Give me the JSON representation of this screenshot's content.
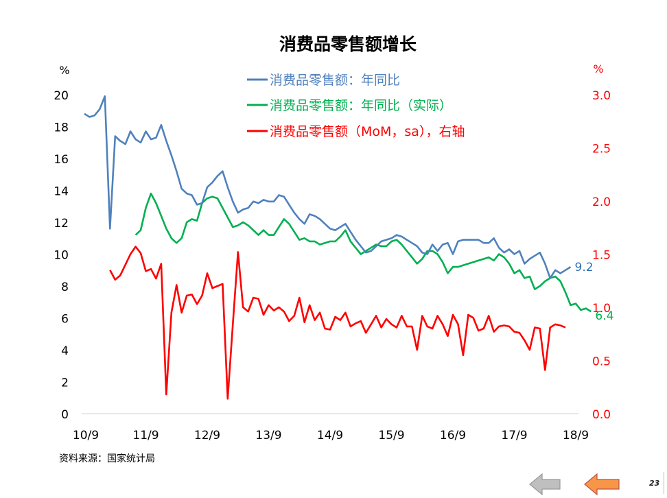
{
  "chart_data": {
    "type": "line",
    "title": "消费品零售额增长",
    "left_axis_unit": "%",
    "right_axis_unit": "%",
    "x_tick_labels": [
      "10/9",
      "11/9",
      "12/9",
      "13/9",
      "14/9",
      "15/9",
      "16/9",
      "17/9",
      "18/9"
    ],
    "y_left": {
      "range": [
        0,
        20
      ],
      "ticks": [
        "0",
        "2",
        "4",
        "6",
        "8",
        "10",
        "12",
        "14",
        "16",
        "18",
        "20"
      ]
    },
    "y_right": {
      "range": [
        0,
        3
      ],
      "ticks": [
        "0.0",
        "0.5",
        "1.0",
        "1.5",
        "2.0",
        "2.5",
        "3.0"
      ]
    },
    "x_range": [
      0,
      96
    ],
    "legend_position": "top-center",
    "series": [
      {
        "name": "消费品零售额：年同比",
        "axis": "left",
        "color": "#4f81bd",
        "end_label": "9.2",
        "values": [
          18.8,
          18.6,
          18.7,
          19.1,
          19.9,
          11.6,
          17.4,
          17.1,
          16.9,
          17.7,
          17.2,
          17.0,
          17.7,
          17.2,
          17.3,
          18.1,
          17.1,
          16.2,
          15.2,
          14.1,
          13.8,
          13.7,
          13.1,
          13.2,
          14.2,
          14.5,
          14.9,
          15.2,
          14.2,
          13.3,
          12.6,
          12.8,
          12.9,
          13.3,
          13.2,
          13.4,
          13.3,
          13.3,
          13.7,
          13.6,
          13.1,
          12.6,
          12.2,
          11.9,
          12.5,
          12.4,
          12.2,
          11.9,
          11.6,
          11.5,
          11.7,
          11.9,
          11.4,
          10.9,
          10.5,
          10.1,
          10.2,
          10.5,
          10.8,
          10.9,
          11.0,
          11.2,
          11.1,
          10.9,
          10.7,
          10.5,
          10.1,
          10.0,
          10.6,
          10.2,
          10.6,
          10.7,
          10.0,
          10.8,
          10.9,
          10.9,
          10.9,
          10.9,
          10.7,
          10.7,
          11.0,
          10.4,
          10.1,
          10.3,
          10.0,
          10.2,
          9.4,
          9.7,
          9.9,
          10.1,
          9.4,
          8.5,
          9.0,
          8.8,
          9.0,
          9.2
        ]
      },
      {
        "name": "消费品零售额：年同比（实际）",
        "axis": "left",
        "color": "#00b050",
        "end_label": "6.4",
        "x_start": 10,
        "values": [
          11.2,
          11.5,
          12.9,
          13.8,
          13.2,
          12.4,
          11.6,
          11.0,
          10.7,
          11.0,
          12.0,
          12.2,
          12.1,
          13.2,
          13.5,
          13.6,
          13.5,
          12.9,
          12.3,
          11.7,
          11.8,
          12.0,
          11.8,
          11.5,
          11.2,
          11.5,
          11.2,
          11.2,
          11.7,
          12.2,
          11.9,
          11.4,
          10.9,
          11.0,
          10.8,
          10.8,
          10.6,
          10.7,
          10.8,
          10.8,
          11.1,
          11.5,
          10.8,
          10.4,
          10.0,
          10.2,
          10.4,
          10.6,
          10.5,
          10.5,
          10.8,
          10.9,
          10.6,
          10.2,
          9.8,
          9.4,
          9.7,
          10.2,
          10.2,
          10.0,
          9.5,
          8.8,
          9.2,
          9.2,
          9.3,
          9.4,
          9.5,
          9.6,
          9.7,
          9.8,
          9.6,
          10.0,
          9.8,
          9.4,
          8.8,
          9.0,
          8.5,
          8.6,
          7.8,
          8.0,
          8.3,
          8.5,
          8.6,
          8.3,
          7.6,
          6.8,
          6.9,
          6.5,
          6.6,
          6.4
        ]
      },
      {
        "name": "消费品零售额（MoM，sa），右轴",
        "axis": "right",
        "color": "#ff0000",
        "x_start": 5,
        "values": [
          1.35,
          1.26,
          1.3,
          1.4,
          1.5,
          1.57,
          1.51,
          1.34,
          1.36,
          1.27,
          1.41,
          0.18,
          0.95,
          1.21,
          0.95,
          1.11,
          1.12,
          1.03,
          1.11,
          1.32,
          1.18,
          1.2,
          1.22,
          0.14,
          0.84,
          1.52,
          1.0,
          0.96,
          1.09,
          1.08,
          0.93,
          1.02,
          0.97,
          1.0,
          0.96,
          0.87,
          0.92,
          1.09,
          0.86,
          1.02,
          0.88,
          0.95,
          0.8,
          0.79,
          0.91,
          0.88,
          0.95,
          0.82,
          0.85,
          0.87,
          0.76,
          0.84,
          0.92,
          0.81,
          0.89,
          0.84,
          0.81,
          0.92,
          0.82,
          0.82,
          0.6,
          0.92,
          0.82,
          0.8,
          0.92,
          0.84,
          0.73,
          0.93,
          0.84,
          0.55,
          0.93,
          0.9,
          0.78,
          0.8,
          0.92,
          0.77,
          0.82,
          0.83,
          0.82,
          0.77,
          0.76,
          0.69,
          0.6,
          0.81,
          0.8,
          0.41,
          0.81,
          0.84,
          0.83,
          0.81
        ]
      }
    ]
  },
  "source_note": "资料来源：国家统计局",
  "page_number": "23",
  "nav": {
    "back_color": "#bfbfbf",
    "forward_color": "#f79646"
  }
}
